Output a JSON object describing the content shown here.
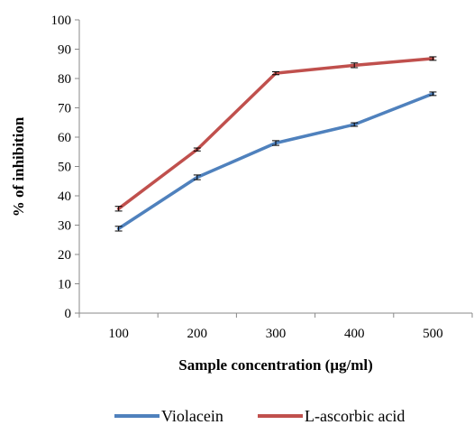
{
  "chart_data": {
    "type": "line",
    "categories": [
      "100",
      "200",
      "300",
      "400",
      "500"
    ],
    "series": [
      {
        "name": "Violacein",
        "values": [
          28.8,
          46.3,
          58.0,
          64.3,
          74.8
        ],
        "errors": [
          0.8,
          0.8,
          0.8,
          0.6,
          0.6
        ],
        "color": "#4f81bd"
      },
      {
        "name": "L-ascorbic acid",
        "values": [
          35.6,
          55.8,
          81.8,
          84.5,
          86.8
        ],
        "errors": [
          0.8,
          0.5,
          0.5,
          0.8,
          0.6
        ],
        "color": "#c0504d"
      }
    ],
    "title": "",
    "xlabel": "Sample concentration (μg/ml)",
    "ylabel": "% of inhibition",
    "ylim": [
      0,
      100
    ],
    "yticks": [
      0,
      10,
      20,
      30,
      40,
      50,
      60,
      70,
      80,
      90,
      100
    ],
    "grid": false,
    "legend_position": "bottom"
  }
}
